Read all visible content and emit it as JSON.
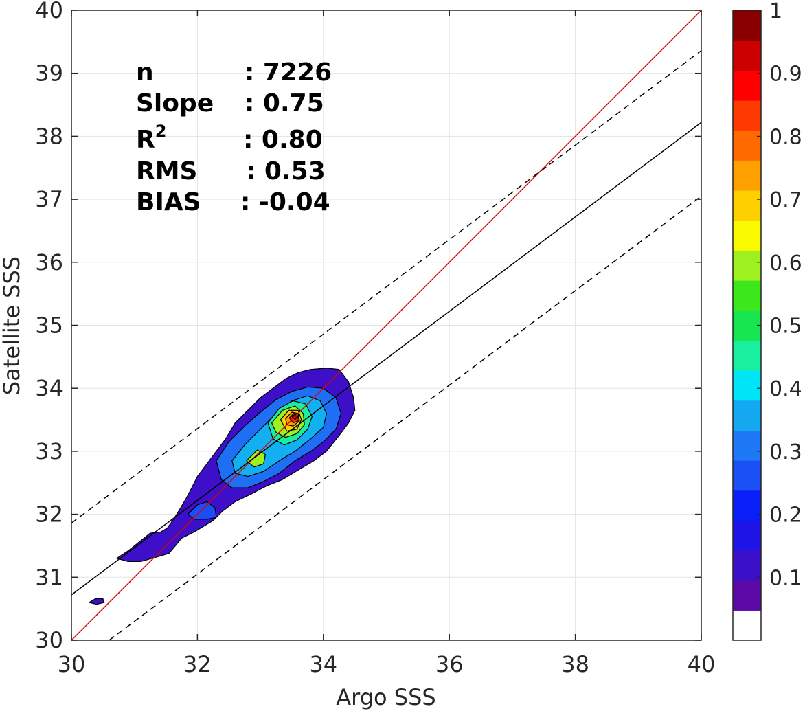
{
  "chart_data": {
    "type": "heatmap",
    "xlabel": "Argo SSS",
    "ylabel": "Satellite SSS",
    "xlim": [
      30,
      40
    ],
    "ylim": [
      30,
      40
    ],
    "x_ticks": [
      "30",
      "32",
      "34",
      "36",
      "38",
      "40"
    ],
    "y_ticks": [
      "30",
      "31",
      "32",
      "33",
      "34",
      "35",
      "36",
      "37",
      "38",
      "39",
      "40"
    ],
    "grid": true,
    "stats": [
      {
        "label": "n",
        "value": ": 7226"
      },
      {
        "label": "Slope",
        "value": ": 0.75"
      },
      {
        "label": "R",
        "sup": "2",
        "value": ": 0.80"
      },
      {
        "label": "RMS",
        "value": ": 0.53"
      },
      {
        "label": "BIAS",
        "value": ": -0.04"
      }
    ],
    "lines": [
      {
        "style": "solid",
        "color": "#e00000",
        "points": [
          [
            30,
            30
          ],
          [
            40,
            40
          ]
        ]
      },
      {
        "style": "solid",
        "color": "#000000",
        "points": [
          [
            30,
            30.72
          ],
          [
            40,
            38.22
          ]
        ]
      },
      {
        "style": "dashed",
        "color": "#000000",
        "points": [
          [
            30,
            31.86
          ],
          [
            40,
            39.36
          ]
        ]
      },
      {
        "style": "dashed",
        "color": "#000000",
        "points": [
          [
            30.6,
            30
          ],
          [
            40,
            37.05
          ]
        ]
      }
    ],
    "density_contours": [
      {
        "level": 0.05,
        "color": "#3e0fc9",
        "points": [
          [
            30.72,
            31.3
          ],
          [
            30.9,
            31.42
          ],
          [
            31.1,
            31.58
          ],
          [
            31.25,
            31.7
          ],
          [
            31.42,
            31.72
          ],
          [
            31.52,
            31.78
          ],
          [
            31.62,
            31.92
          ],
          [
            31.72,
            32.08
          ],
          [
            31.82,
            32.25
          ],
          [
            31.9,
            32.4
          ],
          [
            32.0,
            32.6
          ],
          [
            32.15,
            32.8
          ],
          [
            32.3,
            33.0
          ],
          [
            32.45,
            33.2
          ],
          [
            32.6,
            33.45
          ],
          [
            32.8,
            33.65
          ],
          [
            33.0,
            33.85
          ],
          [
            33.2,
            34.0
          ],
          [
            33.4,
            34.15
          ],
          [
            33.6,
            34.25
          ],
          [
            33.8,
            34.3
          ],
          [
            34.05,
            34.32
          ],
          [
            34.25,
            34.3
          ],
          [
            34.4,
            34.1
          ],
          [
            34.48,
            33.85
          ],
          [
            34.5,
            33.65
          ],
          [
            34.4,
            33.45
          ],
          [
            34.25,
            33.25
          ],
          [
            34.05,
            33.0
          ],
          [
            33.85,
            32.85
          ],
          [
            33.6,
            32.7
          ],
          [
            33.35,
            32.55
          ],
          [
            33.1,
            32.45
          ],
          [
            32.85,
            32.32
          ],
          [
            32.6,
            32.2
          ],
          [
            32.4,
            32.05
          ],
          [
            32.25,
            31.9
          ],
          [
            31.95,
            31.72
          ],
          [
            31.75,
            31.62
          ],
          [
            31.65,
            31.5
          ],
          [
            31.55,
            31.38
          ],
          [
            31.35,
            31.32
          ],
          [
            31.1,
            31.25
          ],
          [
            30.9,
            31.25
          ]
        ]
      },
      {
        "level": 0.05,
        "color": "#3e0fc9",
        "points": [
          [
            30.28,
            30.6
          ],
          [
            30.38,
            30.66
          ],
          [
            30.5,
            30.66
          ],
          [
            30.52,
            30.6
          ],
          [
            30.4,
            30.57
          ]
        ]
      },
      {
        "level": 0.2,
        "color": "#1a4df5",
        "points": [
          [
            31.85,
            32.0
          ],
          [
            32.0,
            32.15
          ],
          [
            32.15,
            32.2
          ],
          [
            32.28,
            32.1
          ],
          [
            32.3,
            31.95
          ],
          [
            32.15,
            31.92
          ],
          [
            31.95,
            31.92
          ]
        ]
      },
      {
        "level": 0.2,
        "color": "#1f6ff5",
        "points": [
          [
            32.3,
            32.85
          ],
          [
            32.5,
            33.15
          ],
          [
            32.75,
            33.4
          ],
          [
            33.0,
            33.62
          ],
          [
            33.25,
            33.82
          ],
          [
            33.5,
            33.95
          ],
          [
            33.75,
            34.02
          ],
          [
            34.0,
            34.0
          ],
          [
            34.2,
            33.85
          ],
          [
            34.28,
            33.6
          ],
          [
            34.2,
            33.35
          ],
          [
            34.0,
            33.15
          ],
          [
            33.8,
            33.0
          ],
          [
            33.55,
            32.85
          ],
          [
            33.3,
            32.65
          ],
          [
            33.05,
            32.52
          ],
          [
            32.8,
            32.42
          ],
          [
            32.55,
            32.42
          ],
          [
            32.38,
            32.55
          ]
        ]
      },
      {
        "level": 0.3,
        "color": "#12b0f0",
        "points": [
          [
            32.55,
            32.85
          ],
          [
            32.75,
            33.1
          ],
          [
            33.0,
            33.35
          ],
          [
            33.25,
            33.6
          ],
          [
            33.5,
            33.8
          ],
          [
            33.75,
            33.88
          ],
          [
            33.95,
            33.8
          ],
          [
            34.05,
            33.6
          ],
          [
            34.0,
            33.38
          ],
          [
            33.8,
            33.2
          ],
          [
            33.55,
            33.0
          ],
          [
            33.3,
            32.85
          ],
          [
            33.05,
            32.68
          ],
          [
            32.8,
            32.6
          ],
          [
            32.6,
            32.65
          ]
        ]
      },
      {
        "level": 0.45,
        "color": "#18f0a0",
        "points": [
          [
            33.12,
            33.45
          ],
          [
            33.3,
            33.68
          ],
          [
            33.52,
            33.8
          ],
          [
            33.72,
            33.75
          ],
          [
            33.82,
            33.55
          ],
          [
            33.75,
            33.35
          ],
          [
            33.58,
            33.18
          ],
          [
            33.38,
            33.1
          ],
          [
            33.2,
            33.2
          ]
        ]
      },
      {
        "level": 0.55,
        "color": "#9ef020",
        "points": [
          [
            33.18,
            33.45
          ],
          [
            33.35,
            33.65
          ],
          [
            33.55,
            33.72
          ],
          [
            33.68,
            33.6
          ],
          [
            33.7,
            33.42
          ],
          [
            33.58,
            33.28
          ],
          [
            33.4,
            33.22
          ],
          [
            33.25,
            33.3
          ]
        ]
      },
      {
        "level": 0.55,
        "color": "#9ef020",
        "points": [
          [
            32.78,
            32.85
          ],
          [
            32.95,
            33.02
          ],
          [
            33.08,
            32.95
          ],
          [
            33.05,
            32.8
          ],
          [
            32.9,
            32.75
          ]
        ]
      },
      {
        "level": 0.65,
        "color": "#ffd000",
        "points": [
          [
            33.32,
            33.5
          ],
          [
            33.45,
            33.65
          ],
          [
            33.6,
            33.65
          ],
          [
            33.65,
            33.5
          ],
          [
            33.58,
            33.35
          ],
          [
            33.42,
            33.32
          ]
        ]
      },
      {
        "level": 0.75,
        "color": "#ff9a00",
        "points": [
          [
            33.4,
            33.52
          ],
          [
            33.5,
            33.62
          ],
          [
            33.6,
            33.6
          ],
          [
            33.62,
            33.48
          ],
          [
            33.52,
            33.4
          ],
          [
            33.42,
            33.42
          ]
        ]
      },
      {
        "level": 0.85,
        "color": "#ff3000",
        "points": [
          [
            33.46,
            33.53
          ],
          [
            33.53,
            33.6
          ],
          [
            33.6,
            33.56
          ],
          [
            33.6,
            33.48
          ],
          [
            33.52,
            33.45
          ]
        ]
      },
      {
        "level": 0.95,
        "color": "#b00000",
        "points": [
          [
            33.5,
            33.55
          ],
          [
            33.55,
            33.59
          ],
          [
            33.59,
            33.55
          ],
          [
            33.55,
            33.5
          ]
        ]
      }
    ],
    "colorbar": {
      "ticks": [
        "0.1",
        "0.2",
        "0.3",
        "0.4",
        "0.5",
        "0.6",
        "0.7",
        "0.8",
        "0.9",
        "1"
      ],
      "tick_values": [
        0.1,
        0.2,
        0.3,
        0.4,
        0.5,
        0.6,
        0.7,
        0.8,
        0.9,
        1.0
      ],
      "range": [
        0,
        1
      ],
      "colors": [
        "#ffffff",
        "#5b0aa8",
        "#3a10c8",
        "#1f14e6",
        "#0a1ef8",
        "#1a50f5",
        "#1f78f5",
        "#13a8f0",
        "#00e6f8",
        "#18f0a0",
        "#18e650",
        "#3ce81c",
        "#9ef020",
        "#fafa00",
        "#ffd000",
        "#ffa000",
        "#ff6a00",
        "#ff3a00",
        "#ff0000",
        "#cc0000",
        "#8a0000"
      ]
    }
  }
}
